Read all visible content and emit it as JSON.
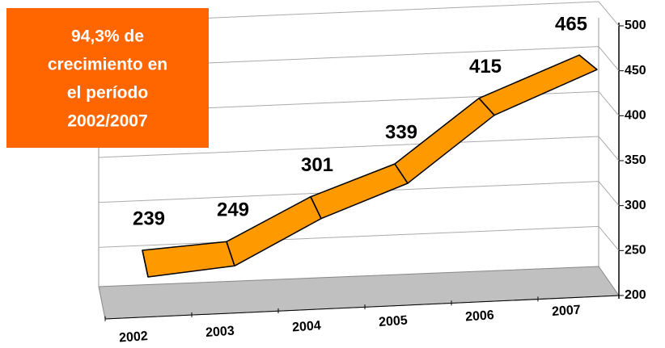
{
  "chart_data": {
    "type": "line3d",
    "categories": [
      "2002",
      "2003",
      "2004",
      "2005",
      "2006",
      "2007"
    ],
    "values": [
      239,
      249,
      301,
      339,
      415,
      465
    ],
    "color": "#ff9900",
    "ylim": [
      200,
      500
    ],
    "yticks": [
      200,
      250,
      300,
      350,
      400,
      450,
      500
    ],
    "grid": true,
    "annotation": [
      "94,3% de",
      "crecimiento en",
      "el período",
      "2002/2007"
    ],
    "annotation_color": "#ff6600"
  }
}
